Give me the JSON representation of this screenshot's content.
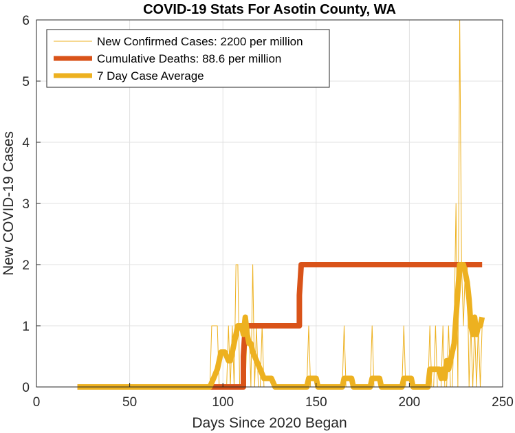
{
  "chart_data": {
    "type": "line",
    "title": "COVID-19 Stats For Asotin County, WA",
    "xlabel": "Days Since 2020 Began",
    "ylabel": "New COVID-19 Cases",
    "xlim": [
      0,
      250
    ],
    "ylim": [
      0,
      6
    ],
    "xticks": [
      "0",
      "50",
      "100",
      "150",
      "200",
      "250"
    ],
    "yticks": [
      "0",
      "1",
      "2",
      "3",
      "4",
      "5",
      "6"
    ],
    "grid": true,
    "legend_position": "top-left",
    "series": [
      {
        "name": "New Confirmed Cases: 2200 per million",
        "color": "#EDB120",
        "line": "thin",
        "x": [
          22,
          93,
          94,
          95,
          96,
          97,
          98,
          99,
          100,
          101,
          102,
          103,
          104,
          105,
          106,
          107,
          108,
          109,
          110,
          111,
          112,
          113,
          114,
          115,
          116,
          117,
          118,
          119,
          120,
          121,
          122,
          123,
          124,
          145,
          146,
          147,
          148,
          149,
          164,
          165,
          166,
          179,
          180,
          181,
          196,
          197,
          198,
          206,
          207,
          208,
          209,
          210,
          211,
          212,
          213,
          214,
          215,
          216,
          217,
          218,
          219,
          220,
          221,
          222,
          223,
          224,
          225,
          226,
          227,
          228,
          229,
          230,
          231,
          232,
          233,
          234,
          235,
          236,
          237,
          238,
          239
        ],
        "y": [
          0,
          0,
          1,
          1,
          1,
          1,
          0,
          0,
          0,
          0,
          0,
          1,
          0,
          1,
          0,
          2,
          2,
          0,
          0,
          0,
          0,
          1,
          1,
          0,
          2,
          0,
          1,
          0,
          0,
          1,
          0,
          0,
          0,
          0,
          1,
          0,
          0,
          0,
          0,
          1,
          0,
          0,
          1,
          0,
          0,
          1,
          0,
          0,
          0,
          0,
          0,
          0,
          1,
          0,
          0,
          1,
          0,
          0,
          0,
          1,
          0,
          0,
          1,
          0,
          0,
          1,
          3,
          0,
          6,
          2,
          1,
          2,
          2,
          0,
          1,
          0,
          1,
          0,
          1,
          0,
          1
        ]
      },
      {
        "name": "Cumulative Deaths: 88.6 per million",
        "color": "#D95319",
        "line": "thick",
        "x": [
          22,
          111,
          111,
          112,
          141,
          141,
          142,
          239
        ],
        "y": [
          0,
          0,
          0.5,
          1,
          1,
          1.5,
          2,
          2
        ]
      },
      {
        "name": "7 Day Case Average",
        "color": "#EDB120",
        "line": "thick",
        "x": [
          22,
          93,
          95,
          97,
          99,
          101,
          103,
          104,
          105,
          106,
          107,
          108,
          109,
          110,
          111,
          112,
          113,
          114,
          115,
          116,
          118,
          120,
          122,
          124,
          126,
          128,
          130,
          145,
          146,
          150,
          151,
          164,
          165,
          169,
          170,
          179,
          180,
          184,
          185,
          196,
          197,
          201,
          202,
          210,
          211,
          216,
          217,
          218,
          219,
          220,
          221,
          222,
          223,
          224,
          225,
          226,
          227,
          228,
          229,
          230,
          231,
          232,
          233,
          234,
          235,
          236,
          237,
          238,
          239
        ],
        "y": [
          0,
          0,
          0.14,
          0.29,
          0.57,
          0.57,
          0.43,
          0.43,
          0.57,
          0.71,
          0.86,
          1.0,
          1.0,
          1.0,
          0.86,
          1.14,
          0.86,
          0.71,
          0.71,
          0.57,
          0.43,
          0.29,
          0.14,
          0.14,
          0.14,
          0.0,
          0.0,
          0.0,
          0.14,
          0.14,
          0.0,
          0.0,
          0.14,
          0.14,
          0.0,
          0.0,
          0.14,
          0.14,
          0.0,
          0.0,
          0.14,
          0.14,
          0.0,
          0.0,
          0.29,
          0.29,
          0.14,
          0.29,
          0.14,
          0.43,
          0.29,
          0.43,
          0.57,
          0.71,
          1.14,
          1.57,
          2.0,
          2.0,
          2.0,
          1.86,
          1.71,
          1.43,
          1.0,
          0.86,
          1.14,
          0.86,
          1.0,
          1.0,
          1.14
        ]
      }
    ]
  }
}
